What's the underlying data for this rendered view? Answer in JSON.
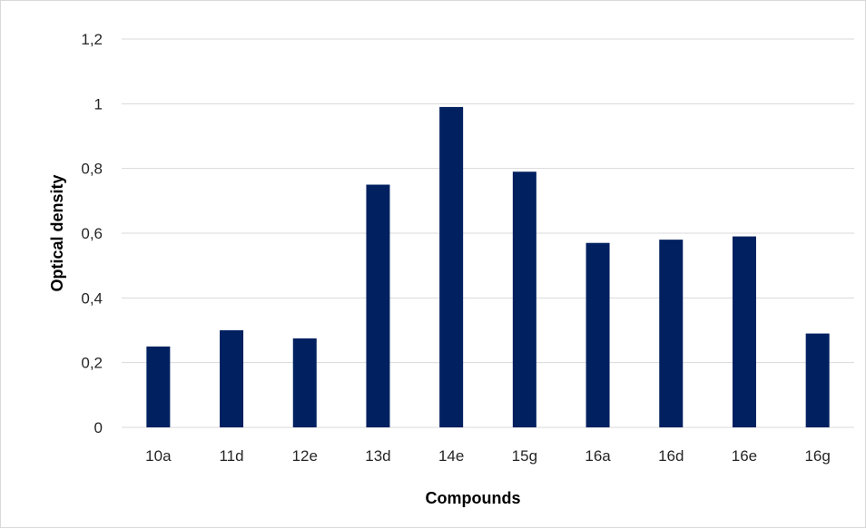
{
  "chart_data": {
    "type": "bar",
    "title": "",
    "xlabel": "Compounds",
    "ylabel": "Optical density",
    "categories": [
      "10a",
      "11d",
      "12e",
      "13d",
      "14e",
      "15g",
      "16a",
      "16d",
      "16e",
      "16g"
    ],
    "values": [
      0.25,
      0.3,
      0.275,
      0.75,
      0.99,
      0.79,
      0.57,
      0.58,
      0.59,
      0.29
    ],
    "ylim": [
      0,
      1.2
    ],
    "yticks": [
      0,
      0.2,
      0.4,
      0.6,
      0.8,
      1,
      1.2
    ],
    "ytick_labels": [
      "0",
      "0,2",
      "0,4",
      "0,6",
      "0,8",
      "1",
      "1,2"
    ],
    "grid": true,
    "legend": "none",
    "colors": {
      "bar": "#002060",
      "grid": "#d9d9d9"
    }
  }
}
